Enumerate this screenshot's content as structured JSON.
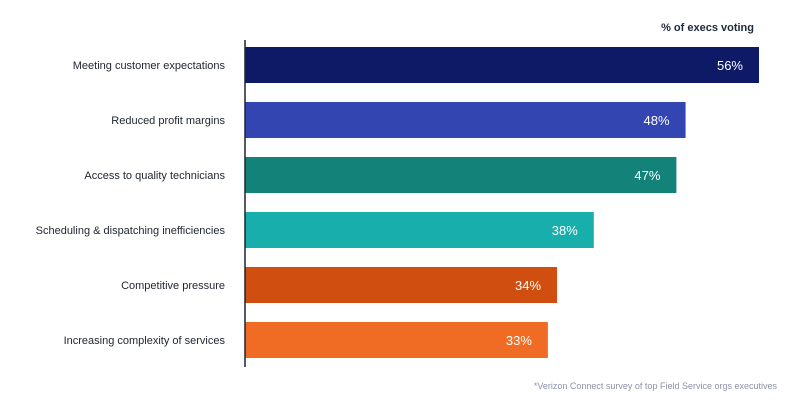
{
  "chart_data": {
    "type": "bar",
    "orientation": "horizontal",
    "value_header": "% of execs voting",
    "categories": [
      "Meeting customer expectations",
      "Reduced profit margins",
      "Access to quality technicians",
      "Scheduling & dispatching inefficiencies",
      "Competitive pressure",
      "Increasing complexity of services"
    ],
    "values": [
      56,
      48,
      47,
      38,
      34,
      33
    ],
    "value_labels": [
      "56%",
      "48%",
      "47%",
      "38%",
      "34%",
      "33%"
    ],
    "colors": [
      "#0e1a66",
      "#3245b0",
      "#138279",
      "#17aeac",
      "#d04e10",
      "#f06c25"
    ],
    "xlim": [
      0,
      56
    ],
    "grid": false,
    "legend": "none",
    "footnote": "*Verizon Connect survey of top Field Service orgs executives"
  }
}
